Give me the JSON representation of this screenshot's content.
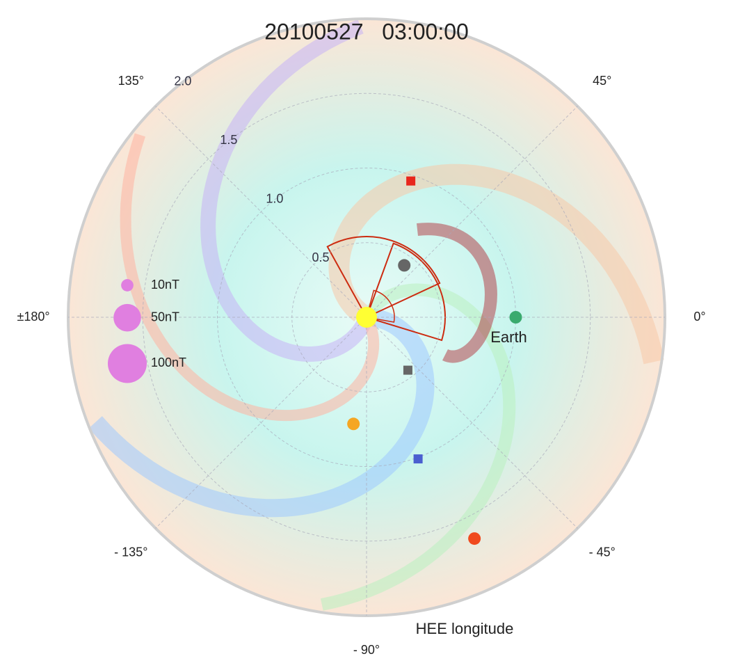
{
  "chart_data": {
    "type": "polar",
    "title": "20100527   03:00:00",
    "axis_label": "HEE longitude",
    "rlim": [
      0,
      2.0
    ],
    "rticks": [
      0.5,
      {
        "value": 1.0,
        "label": "1.0"
      },
      1.5,
      {
        "value": 2.0,
        "label": "2.0"
      }
    ],
    "thetaticks": [
      {
        "value": 0,
        "label": "0°"
      },
      {
        "value": 45,
        "label": "45°"
      },
      {
        "value": 135,
        "label": "135°"
      },
      {
        "value": 180,
        "label": "±180°"
      },
      {
        "value": -135,
        "label": "- 135°"
      },
      {
        "value": -90,
        "label": "- 90°"
      },
      {
        "value": -45,
        "label": "- 45°"
      }
    ],
    "grid": true,
    "points": [
      {
        "r": 0,
        "theta": 0,
        "color": "#ffff33",
        "marker": "circle"
      },
      {
        "r": 1.0,
        "theta": 0,
        "color": "#3aaa6e",
        "marker": "circle",
        "label": "Earth"
      },
      {
        "r": 0.43,
        "theta": 54,
        "color": "#666666",
        "marker": "circle"
      },
      {
        "r": 0.96,
        "theta": 72,
        "color": "#e8261c",
        "marker": "square"
      },
      {
        "r": 0.45,
        "theta": -52,
        "color": "#666666",
        "marker": "square"
      },
      {
        "r": 0.72,
        "theta": -97,
        "color": "#f5a623",
        "marker": "circle"
      },
      {
        "r": 1.01,
        "theta": -70,
        "color": "#4a5fd0",
        "marker": "square"
      },
      {
        "r": 1.65,
        "theta": -64,
        "color": "#f04a1e",
        "marker": "circle"
      }
    ],
    "size_legend": {
      "color": "#e07fe0",
      "items": [
        {
          "value": 10,
          "label": "10nT"
        },
        {
          "value": 50,
          "label": "50nT"
        },
        {
          "value": 100,
          "label": "100nT"
        }
      ]
    }
  }
}
